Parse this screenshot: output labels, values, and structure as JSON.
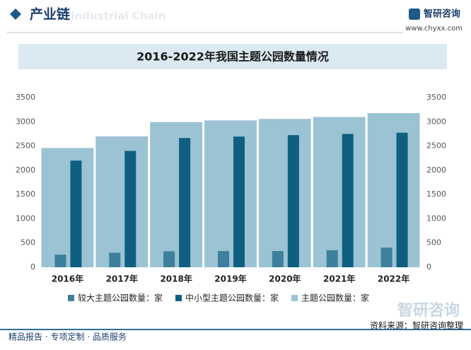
{
  "header": {
    "title": "产业链",
    "watermark": "Industrial Chain",
    "brand": "智研咨询",
    "url": "www.chyxx.com"
  },
  "chart_data": {
    "type": "bar",
    "title": "2016-2022年我国主题公园数量情况",
    "categories": [
      "2016年",
      "2017年",
      "2018年",
      "2019年",
      "2020年",
      "2021年",
      "2022年"
    ],
    "series": [
      {
        "name": "较大主题公园数量：家",
        "color": "#3d7f9c",
        "values": [
          260,
          300,
          330,
          335,
          335,
          350,
          405
        ]
      },
      {
        "name": "中小型主题公园数量：家",
        "color": "#0f5f80",
        "values": [
          2200,
          2400,
          2665,
          2695,
          2725,
          2750,
          2775
        ]
      },
      {
        "name": "主题公园数量：家",
        "color": "#9bc3d3",
        "values": [
          2460,
          2700,
          2995,
          3030,
          3060,
          3100,
          3180
        ],
        "axis": "y2"
      }
    ],
    "ylim": [
      0,
      3500
    ],
    "yticks": [
      0,
      500,
      1000,
      1500,
      2000,
      2500,
      3000,
      3500
    ],
    "y2lim": [
      0,
      3500
    ],
    "y2ticks": [
      0,
      500,
      1000,
      1500,
      2000,
      2500,
      3000,
      3500
    ]
  },
  "footer": {
    "slogan": "精品报告 · 专项定制 · 品质服务",
    "source": "资料来源：智研咨询整理",
    "brand": "智研咨询"
  }
}
